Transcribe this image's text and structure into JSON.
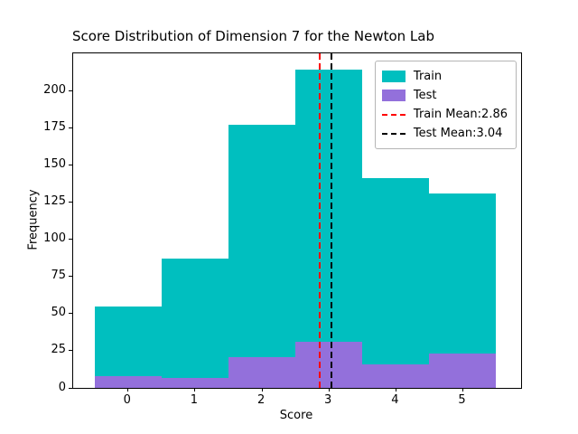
{
  "chart_data": {
    "type": "bar",
    "subtype": "histogram",
    "title": "Score Distribution of Dimension 7 for the Newton Lab",
    "xlabel": "Score",
    "ylabel": "Frequency",
    "grid": false,
    "xlim": [
      -0.82,
      5.87
    ],
    "ylim": [
      0,
      225
    ],
    "xticks": [
      0,
      1,
      2,
      3,
      4,
      5
    ],
    "yticks": [
      0,
      25,
      50,
      75,
      100,
      125,
      150,
      175,
      200
    ],
    "bin_edges": [
      -0.5,
      0.5,
      1.5,
      2.5,
      3.5,
      4.5,
      5.5
    ],
    "series": [
      {
        "name": "Train",
        "color": "#00bfbf",
        "values": [
          55,
          87,
          177,
          214,
          141,
          131
        ]
      },
      {
        "name": "Test",
        "color": "#9370db",
        "values": [
          8,
          7,
          21,
          31,
          16,
          23
        ]
      }
    ],
    "vlines": [
      {
        "name": "train-mean",
        "label": "Train Mean:2.86",
        "x": 2.86,
        "color": "#ff0000",
        "linestyle": "dashed"
      },
      {
        "name": "test-mean",
        "label": "Test Mean:3.04",
        "x": 3.04,
        "color": "#000000",
        "linestyle": "dashed"
      }
    ],
    "legend": {
      "position": "upper right",
      "entries": [
        {
          "label": "Train",
          "type": "patch",
          "color": "#00bfbf"
        },
        {
          "label": "Test",
          "type": "patch",
          "color": "#9370db"
        },
        {
          "label": "Train Mean:2.86",
          "type": "line",
          "color": "#ff0000"
        },
        {
          "label": "Test Mean:3.04",
          "type": "line",
          "color": "#000000"
        }
      ]
    }
  }
}
